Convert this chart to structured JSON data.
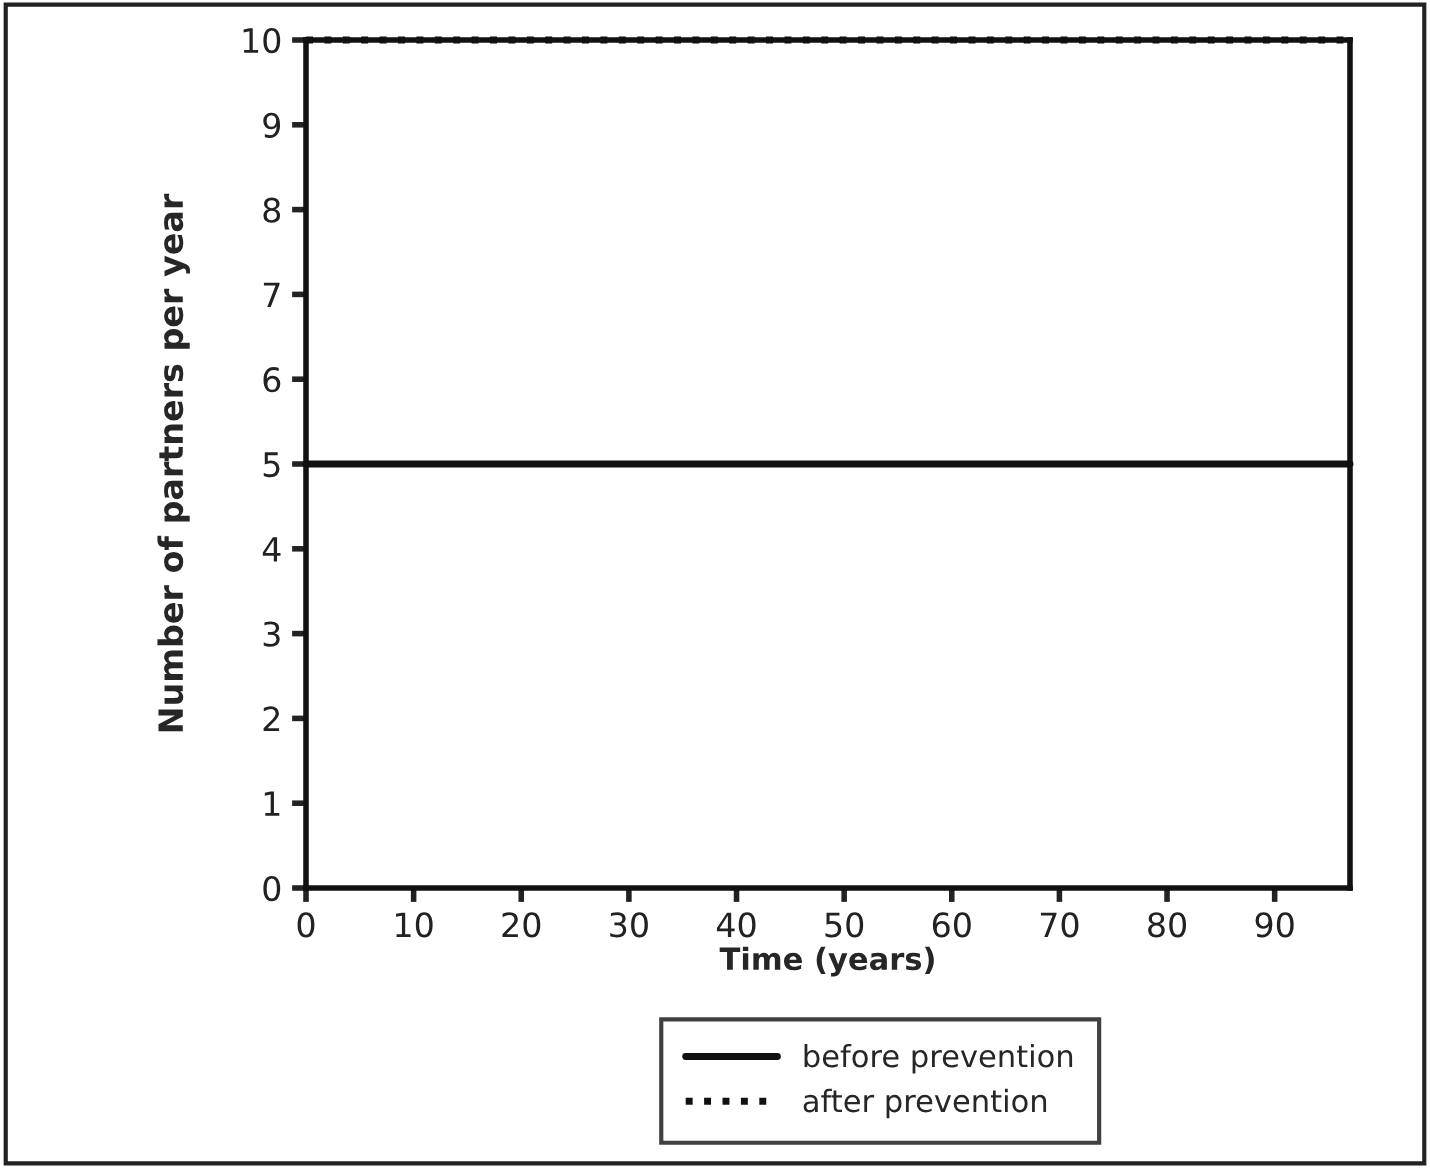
{
  "chart_data": {
    "type": "line",
    "xlabel": "Time (years)",
    "ylabel": "Number of partners per year",
    "x": [
      0,
      97
    ],
    "series": [
      {
        "name": "before prevention",
        "color": "#111111",
        "values": [
          5,
          5
        ],
        "line_style": "solid"
      },
      {
        "name": "after prevention",
        "color": "#111111",
        "values": [
          10,
          10
        ],
        "line_style": "dotted"
      }
    ],
    "xlim": [
      0,
      97
    ],
    "xticks": [
      0,
      10,
      20,
      30,
      40,
      50,
      60,
      70,
      80,
      90
    ],
    "ylim": [
      0,
      10
    ],
    "yticks": [
      0,
      1,
      2,
      3,
      4,
      5,
      6,
      7,
      8,
      9,
      10
    ],
    "grid": false,
    "legend": "bottom",
    "marker": "none"
  }
}
